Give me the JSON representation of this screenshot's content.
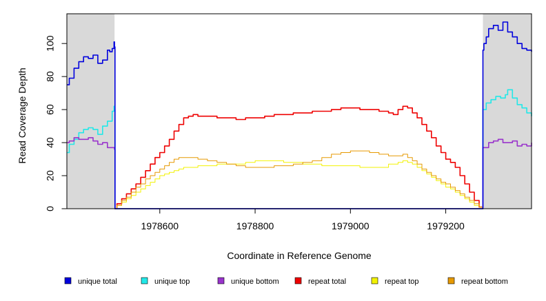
{
  "chart_data": {
    "type": "line",
    "title": "",
    "xlabel": "Coordinate in Reference Genome",
    "ylabel": "Read Coverage Depth",
    "xlim": [
      1978405,
      1979380
    ],
    "ylim": [
      0,
      118
    ],
    "xticks": [
      1978600,
      1978800,
      1979000,
      1979200
    ],
    "yticks": [
      0,
      20,
      40,
      60,
      80,
      100
    ],
    "grid": false,
    "shaded_regions": [
      [
        1978405,
        1978505
      ],
      [
        1979278,
        1979380
      ]
    ],
    "shade_color": "#d9d9d9",
    "legend_position": "bottom",
    "series": [
      {
        "name": "unique total",
        "color": "#0000dd",
        "x": [
          1978405,
          1978410,
          1978420,
          1978430,
          1978440,
          1978450,
          1978460,
          1978470,
          1978480,
          1978490,
          1978495,
          1978500,
          1978504,
          1978505,
          1978506,
          1978600,
          1978800,
          1979000,
          1979130,
          1979270,
          1979277,
          1979278,
          1979280,
          1979285,
          1979290,
          1979300,
          1979310,
          1979320,
          1979330,
          1979340,
          1979350,
          1979360,
          1979370,
          1979380
        ],
        "y": [
          75,
          79,
          85,
          89,
          92,
          91,
          93,
          88,
          90,
          96,
          95,
          97,
          101,
          98,
          0,
          0,
          0,
          0,
          0,
          0,
          0,
          96,
          100,
          104,
          109,
          111,
          108,
          113,
          107,
          104,
          100,
          97,
          96,
          95
        ]
      },
      {
        "name": "unique top",
        "color": "#22e8e8",
        "x": [
          1978405,
          1978410,
          1978420,
          1978430,
          1978440,
          1978450,
          1978460,
          1978470,
          1978480,
          1978490,
          1978500,
          1978504,
          1978505,
          1978506,
          1978600,
          1978800,
          1979000,
          1979130,
          1979270,
          1979277,
          1979278,
          1979285,
          1979295,
          1979305,
          1979315,
          1979325,
          1979330,
          1979340,
          1979350,
          1979360,
          1979370,
          1979380
        ],
        "y": [
          34,
          39,
          42,
          46,
          48,
          49,
          48,
          45,
          50,
          53,
          59,
          62,
          60,
          0,
          0,
          0,
          0,
          0,
          0,
          0,
          60,
          64,
          66,
          68,
          67,
          69,
          72,
          67,
          63,
          61,
          58,
          56
        ]
      },
      {
        "name": "unique bottom",
        "color": "#9933cc",
        "x": [
          1978405,
          1978410,
          1978420,
          1978430,
          1978440,
          1978450,
          1978460,
          1978470,
          1978480,
          1978490,
          1978500,
          1978504,
          1978505,
          1978506,
          1978600,
          1978800,
          1979000,
          1979130,
          1979270,
          1979277,
          1979278,
          1979290,
          1979300,
          1979310,
          1979320,
          1979330,
          1979340,
          1979350,
          1979360,
          1979370,
          1979380
        ],
        "y": [
          40,
          41,
          43,
          42,
          42,
          43,
          41,
          39,
          40,
          37,
          37,
          37,
          36,
          0,
          0,
          0,
          0,
          0,
          0,
          0,
          37,
          40,
          41,
          42,
          40,
          40,
          41,
          38,
          39,
          38,
          40
        ]
      },
      {
        "name": "repeat total",
        "color": "#ee0000",
        "x": [
          1978505,
          1978510,
          1978520,
          1978530,
          1978540,
          1978550,
          1978560,
          1978570,
          1978580,
          1978590,
          1978600,
          1978610,
          1978620,
          1978630,
          1978640,
          1978650,
          1978660,
          1978670,
          1978680,
          1978700,
          1978720,
          1978740,
          1978760,
          1978780,
          1978800,
          1978820,
          1978840,
          1978860,
          1978880,
          1978900,
          1978920,
          1978940,
          1978960,
          1978980,
          1979000,
          1979020,
          1979040,
          1979060,
          1979080,
          1979090,
          1979100,
          1979110,
          1979120,
          1979130,
          1979140,
          1979150,
          1979160,
          1979170,
          1979180,
          1979190,
          1979200,
          1979210,
          1979220,
          1979230,
          1979240,
          1979250,
          1979260,
          1979270,
          1979277
        ],
        "y": [
          0,
          3,
          6,
          9,
          12,
          15,
          19,
          23,
          27,
          31,
          34,
          38,
          42,
          47,
          51,
          55,
          56,
          57,
          56,
          56,
          55,
          55,
          54,
          55,
          55,
          56,
          57,
          57,
          58,
          58,
          59,
          59,
          60,
          61,
          61,
          60,
          60,
          59,
          58,
          57,
          60,
          62,
          61,
          58,
          55,
          51,
          47,
          43,
          38,
          34,
          30,
          28,
          25,
          20,
          15,
          10,
          5,
          1,
          0
        ]
      },
      {
        "name": "repeat top",
        "color": "#f2f200",
        "x": [
          1978505,
          1978510,
          1978520,
          1978530,
          1978540,
          1978550,
          1978560,
          1978570,
          1978580,
          1978590,
          1978600,
          1978610,
          1978620,
          1978630,
          1978640,
          1978650,
          1978660,
          1978680,
          1978700,
          1978720,
          1978740,
          1978760,
          1978780,
          1978800,
          1978820,
          1978840,
          1978860,
          1978880,
          1978900,
          1978920,
          1978940,
          1978960,
          1978980,
          1979000,
          1979020,
          1979040,
          1979060,
          1979080,
          1979100,
          1979110,
          1979120,
          1979130,
          1979140,
          1979150,
          1979160,
          1979170,
          1979180,
          1979190,
          1979200,
          1979210,
          1979220,
          1979230,
          1979240,
          1979250,
          1979260,
          1979270,
          1979277
        ],
        "y": [
          0,
          2,
          4,
          6,
          8,
          10,
          12,
          14,
          16,
          18,
          20,
          21,
          22,
          23,
          24,
          25,
          25,
          26,
          26,
          27,
          27,
          27,
          28,
          29,
          29,
          29,
          28,
          28,
          27,
          27,
          26,
          26,
          26,
          26,
          25,
          25,
          25,
          27,
          28,
          29,
          28,
          27,
          25,
          23,
          21,
          19,
          17,
          15,
          13,
          12,
          10,
          8,
          6,
          4,
          2,
          1,
          0
        ]
      },
      {
        "name": "repeat bottom",
        "color": "#e69900",
        "x": [
          1978505,
          1978510,
          1978520,
          1978530,
          1978540,
          1978550,
          1978560,
          1978570,
          1978580,
          1978590,
          1978600,
          1978610,
          1978620,
          1978630,
          1978640,
          1978650,
          1978660,
          1978670,
          1978680,
          1978700,
          1978720,
          1978740,
          1978760,
          1978780,
          1978800,
          1978820,
          1978840,
          1978860,
          1978880,
          1978900,
          1978920,
          1978940,
          1978960,
          1978980,
          1979000,
          1979020,
          1979040,
          1979060,
          1979080,
          1979100,
          1979110,
          1979120,
          1979130,
          1979140,
          1979150,
          1979160,
          1979170,
          1979180,
          1979190,
          1979200,
          1979210,
          1979220,
          1979230,
          1979240,
          1979250,
          1979260,
          1979270,
          1979277
        ],
        "y": [
          0,
          2,
          5,
          7,
          10,
          13,
          15,
          18,
          20,
          22,
          24,
          26,
          28,
          30,
          31,
          31,
          31,
          31,
          30,
          29,
          28,
          27,
          26,
          25,
          25,
          25,
          26,
          26,
          27,
          28,
          29,
          31,
          33,
          34,
          35,
          35,
          34,
          33,
          32,
          32,
          33,
          31,
          29,
          27,
          24,
          22,
          20,
          18,
          16,
          15,
          13,
          11,
          9,
          7,
          5,
          3,
          1,
          0
        ]
      }
    ]
  }
}
